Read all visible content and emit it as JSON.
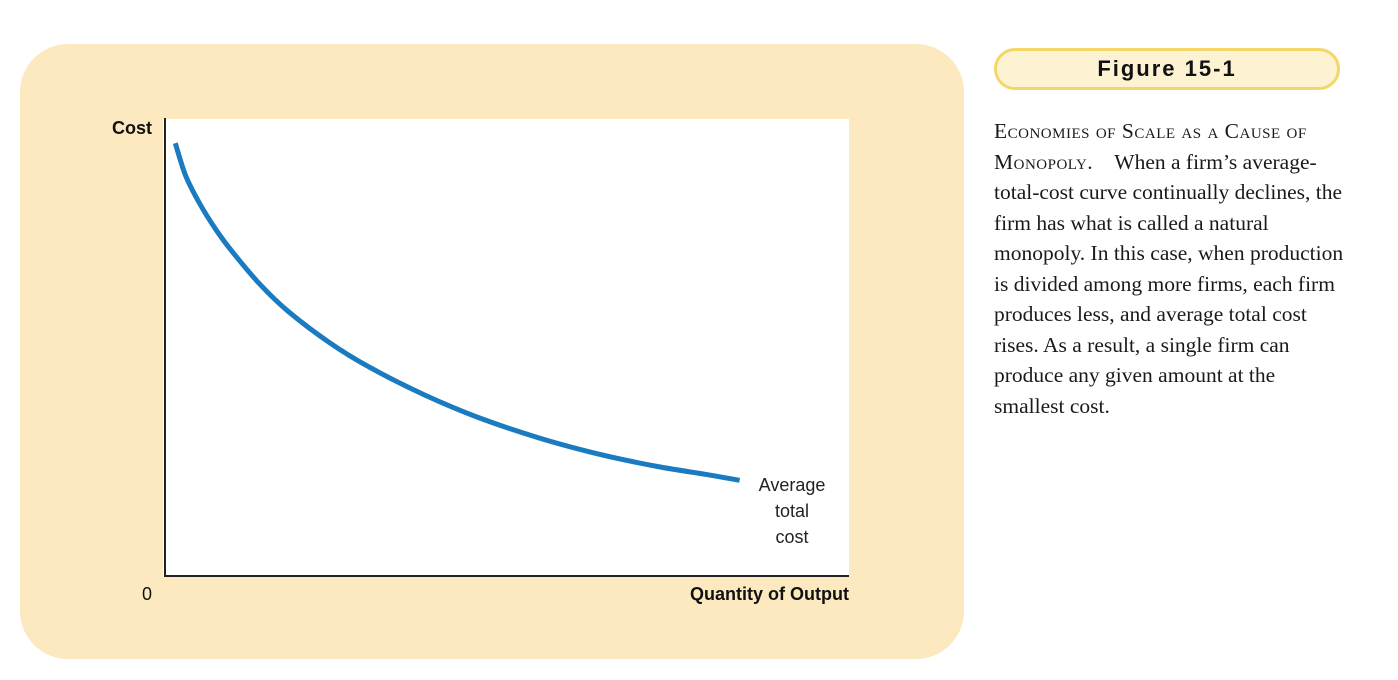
{
  "figure": {
    "tab_label": "Figure 15-1",
    "caption_title": "Economies of Scale as a Cause of Monopoly.",
    "caption_body": "When a firm’s average-total-cost curve continually declines, the firm has what is called a natural monopoly. In this case, when production is divided among more firms, each firm produces less, and average total cost rises. As a result, a single firm can produce any given amount at the smallest cost."
  },
  "chart_data": {
    "type": "line",
    "title": "",
    "xlabel": "Quantity of Output",
    "ylabel": "Cost",
    "origin_label": "0",
    "xlim": [
      0,
      100
    ],
    "ylim": [
      0,
      100
    ],
    "grid": false,
    "colors": {
      "curve": "#1a7bc0",
      "axis": "#222222",
      "panel": "#fce9bf"
    },
    "series": [
      {
        "name": "Average total cost",
        "label_lines": [
          "Average",
          "total",
          "cost"
        ],
        "x": [
          1.5,
          3,
          5,
          7.5,
          10,
          14,
          18,
          24,
          30,
          38,
          46,
          55,
          64,
          72,
          79,
          84
        ],
        "y": [
          94.5,
          87.5,
          81.5,
          75.5,
          70.5,
          63.5,
          57.8,
          51,
          45.5,
          39.5,
          34.5,
          30,
          26.4,
          23.9,
          22.2,
          20.9
        ]
      }
    ]
  }
}
